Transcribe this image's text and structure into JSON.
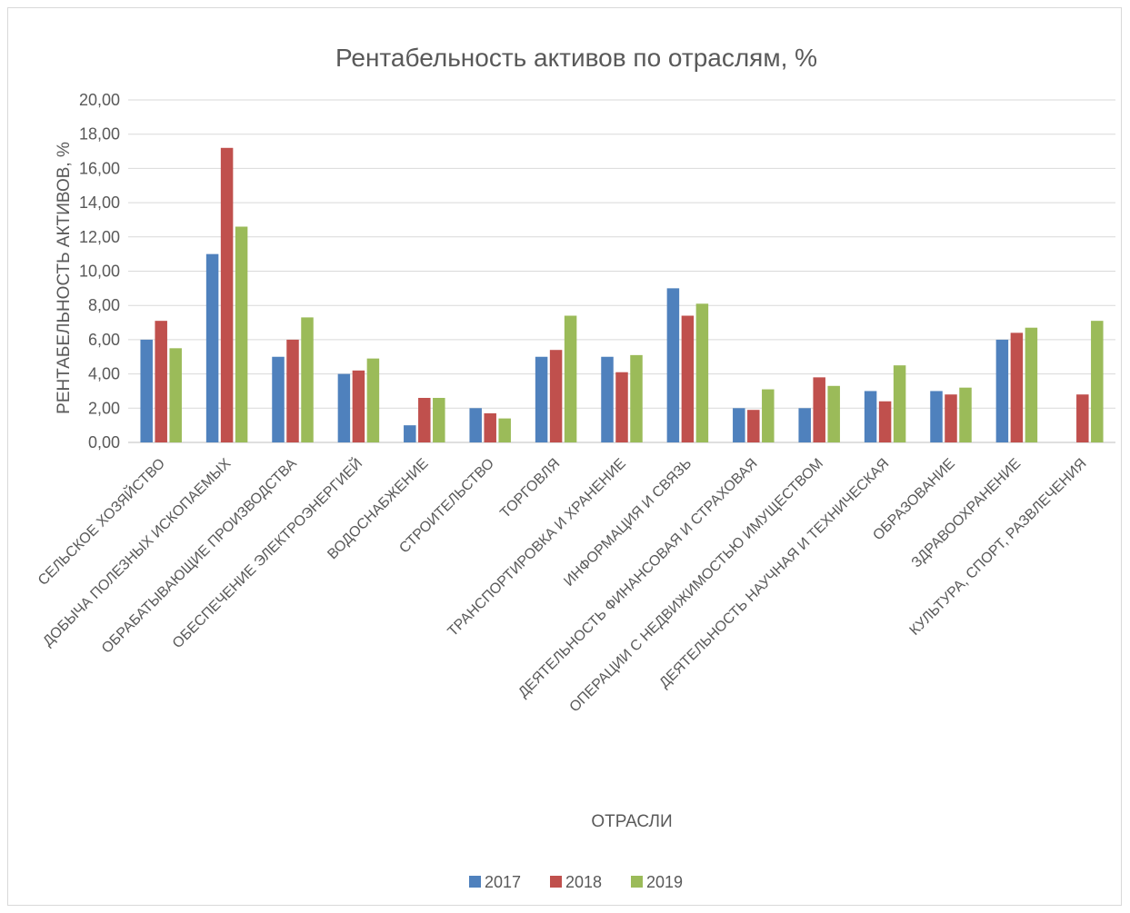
{
  "chart_data": {
    "type": "bar",
    "title": "Рентабельность активов по отраслям, %",
    "xlabel": "ОТРАСЛИ",
    "ylabel": "РЕНТАБЕЛЬНОСТЬ АКТИВОВ, %",
    "ylim": [
      0,
      20
    ],
    "yticks": [
      "0,00",
      "2,00",
      "4,00",
      "6,00",
      "8,00",
      "10,00",
      "12,00",
      "14,00",
      "16,00",
      "18,00",
      "20,00"
    ],
    "grid": true,
    "legend_position": "bottom",
    "categories": [
      "СЕЛЬСКОЕ ХОЗЯЙСТВО",
      "ДОБЫЧА ПОЛЕЗНЫХ ИСКОПАЕМЫХ",
      "ОБРАБАТЫВАЮЩИЕ ПРОИЗВОДСТВА",
      "ОБЕСПЕЧЕНИЕ ЭЛЕКТРОЭНЕРГИЕЙ",
      "ВОДОСНАБЖЕНИЕ",
      "СТРОИТЕЛЬСТВО",
      "ТОРГОВЛЯ",
      "ТРАНСПОРТИРОВКА И ХРАНЕНИЕ",
      "ИНФОРМАЦИЯ И СВЯЗЬ",
      "ДЕЯТЕЛЬНОСТЬ ФИНАНСОВАЯ И СТРАХОВАЯ",
      "ОПЕРАЦИИ С НЕДВИЖИМОСТЬЮ ИМУЩЕСТВОМ",
      "ДЕЯТЕЛЬНОСТЬ НАУЧНАЯ И ТЕХНИЧЕСКАЯ",
      "ОБРАЗОВАНИЕ",
      "ЗДРАВООХРАНЕНИЕ",
      "КУЛЬТУРА, СПОРТ, РАЗВЛЕЧЕНИЯ"
    ],
    "series": [
      {
        "name": "2017",
        "color": "#4f81bd",
        "values": [
          6.0,
          11.0,
          5.0,
          4.0,
          1.0,
          2.0,
          5.0,
          5.0,
          9.0,
          2.0,
          2.0,
          3.0,
          3.0,
          6.0,
          0.0
        ]
      },
      {
        "name": "2018",
        "color": "#c0504d",
        "values": [
          7.1,
          17.2,
          6.0,
          4.2,
          2.6,
          1.7,
          5.4,
          4.1,
          7.4,
          1.9,
          3.8,
          2.4,
          2.8,
          6.4,
          2.8
        ]
      },
      {
        "name": "2019",
        "color": "#9bbb59",
        "values": [
          5.5,
          12.6,
          7.3,
          4.9,
          2.6,
          1.4,
          7.4,
          5.1,
          8.1,
          3.1,
          3.3,
          4.5,
          3.2,
          6.7,
          7.1
        ]
      }
    ]
  }
}
